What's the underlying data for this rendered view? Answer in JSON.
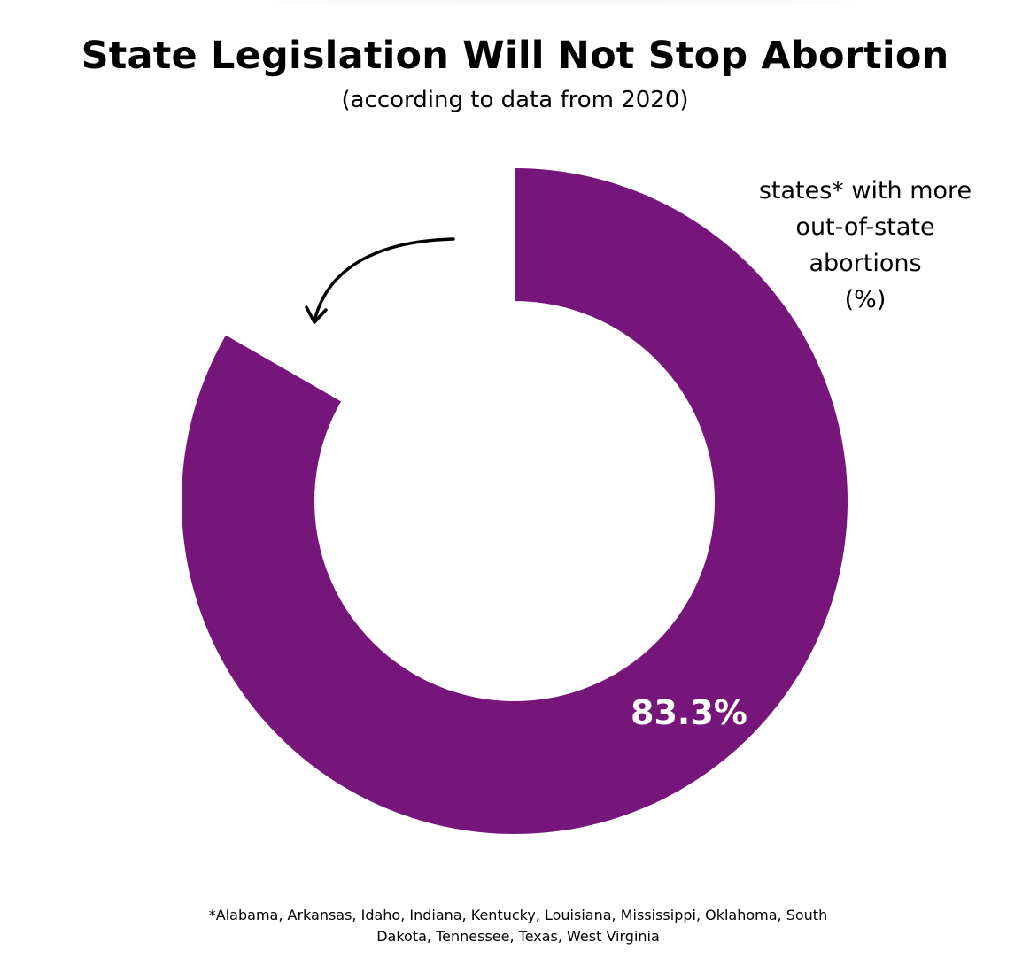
{
  "title": "State Legislation Will Not Stop Abortion",
  "subtitle": "(according to data from 2020)",
  "legend_label": [
    "states* with more",
    "out-of-state",
    "abortions",
    "(%)"
  ],
  "footnote": [
    "*Alabama, Arkansas, Idaho, Indiana, Kentucky, Louisiana, Mississippi, Oklahoma, South",
    "Dakota, Tennessee, Texas, West Virginia"
  ],
  "colors": {
    "segment": "#76157a",
    "data_label": "#ffffff",
    "arrow": "#000000"
  },
  "chart_data": {
    "type": "pie",
    "subtype": "donut",
    "title": "State Legislation Will Not Stop Abortion",
    "subtitle": "(according to data from 2020)",
    "slices": [
      {
        "name": "states* with more out-of-state abortions (%)",
        "value": 83.3,
        "label": "83.3%",
        "color": "#76157a"
      }
    ],
    "start_angle": "12 o'clock",
    "direction": "clockwise",
    "legend": "top-right",
    "annotation": "curved arrow pointing into the unfilled gap"
  }
}
